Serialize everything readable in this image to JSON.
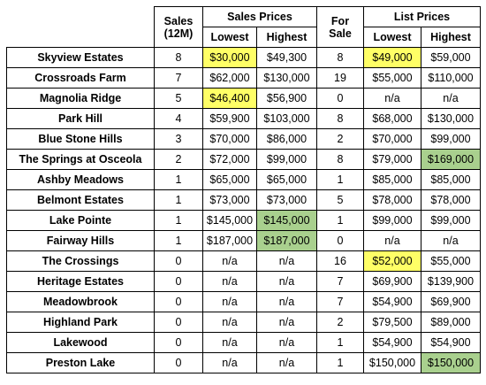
{
  "headers": {
    "sales": "Sales",
    "sales_sub": "(12M)",
    "sales_prices": "Sales Prices",
    "for": "For",
    "for_sub": "Sale",
    "list_prices": "List Prices",
    "lowest": "Lowest",
    "highest": "Highest"
  },
  "colors": {
    "highlight_low": "#ffff66",
    "highlight_high": "#a9d08e"
  },
  "rows": [
    {
      "name": "Skyview Estates",
      "sales": "8",
      "sales_low": "$30,000",
      "sales_high": "$49,300",
      "for_sale": "8",
      "list_low": "$49,000",
      "list_high": "$59,000",
      "hl": {
        "sales_low": "yellow",
        "list_low": "yellow"
      }
    },
    {
      "name": "Crossroads Farm",
      "sales": "7",
      "sales_low": "$62,000",
      "sales_high": "$130,000",
      "for_sale": "19",
      "list_low": "$55,000",
      "list_high": "$110,000",
      "hl": {}
    },
    {
      "name": "Magnolia Ridge",
      "sales": "5",
      "sales_low": "$46,400",
      "sales_high": "$56,900",
      "for_sale": "0",
      "list_low": "n/a",
      "list_high": "n/a",
      "hl": {
        "sales_low": "yellow"
      }
    },
    {
      "name": "Park Hill",
      "sales": "4",
      "sales_low": "$59,900",
      "sales_high": "$103,000",
      "for_sale": "8",
      "list_low": "$68,000",
      "list_high": "$130,000",
      "hl": {}
    },
    {
      "name": "Blue Stone Hills",
      "sales": "3",
      "sales_low": "$70,000",
      "sales_high": "$86,000",
      "for_sale": "2",
      "list_low": "$70,000",
      "list_high": "$99,000",
      "hl": {}
    },
    {
      "name": "The Springs at Osceola",
      "sales": "2",
      "sales_low": "$72,000",
      "sales_high": "$99,000",
      "for_sale": "8",
      "list_low": "$79,000",
      "list_high": "$169,000",
      "hl": {
        "list_high": "green"
      }
    },
    {
      "name": "Ashby Meadows",
      "sales": "1",
      "sales_low": "$65,000",
      "sales_high": "$65,000",
      "for_sale": "1",
      "list_low": "$85,000",
      "list_high": "$85,000",
      "hl": {}
    },
    {
      "name": "Belmont Estates",
      "sales": "1",
      "sales_low": "$73,000",
      "sales_high": "$73,000",
      "for_sale": "5",
      "list_low": "$78,000",
      "list_high": "$78,000",
      "hl": {}
    },
    {
      "name": "Lake Pointe",
      "sales": "1",
      "sales_low": "$145,000",
      "sales_high": "$145,000",
      "for_sale": "1",
      "list_low": "$99,000",
      "list_high": "$99,000",
      "hl": {
        "sales_high": "green"
      }
    },
    {
      "name": "Fairway Hills",
      "sales": "1",
      "sales_low": "$187,000",
      "sales_high": "$187,000",
      "for_sale": "0",
      "list_low": "n/a",
      "list_high": "n/a",
      "hl": {
        "sales_high": "green"
      }
    },
    {
      "name": "The Crossings",
      "sales": "0",
      "sales_low": "n/a",
      "sales_high": "n/a",
      "for_sale": "16",
      "list_low": "$52,000",
      "list_high": "$55,000",
      "hl": {
        "list_low": "yellow"
      }
    },
    {
      "name": "Heritage Estates",
      "sales": "0",
      "sales_low": "n/a",
      "sales_high": "n/a",
      "for_sale": "7",
      "list_low": "$69,900",
      "list_high": "$139,900",
      "hl": {}
    },
    {
      "name": "Meadowbrook",
      "sales": "0",
      "sales_low": "n/a",
      "sales_high": "n/a",
      "for_sale": "7",
      "list_low": "$54,900",
      "list_high": "$69,900",
      "hl": {}
    },
    {
      "name": "Highland Park",
      "sales": "0",
      "sales_low": "n/a",
      "sales_high": "n/a",
      "for_sale": "2",
      "list_low": "$79,500",
      "list_high": "$89,000",
      "hl": {}
    },
    {
      "name": "Lakewood",
      "sales": "0",
      "sales_low": "n/a",
      "sales_high": "n/a",
      "for_sale": "1",
      "list_low": "$54,900",
      "list_high": "$54,900",
      "hl": {}
    },
    {
      "name": "Preston Lake",
      "sales": "0",
      "sales_low": "n/a",
      "sales_high": "n/a",
      "for_sale": "1",
      "list_low": "$150,000",
      "list_high": "$150,000",
      "hl": {
        "list_high": "green"
      }
    }
  ]
}
